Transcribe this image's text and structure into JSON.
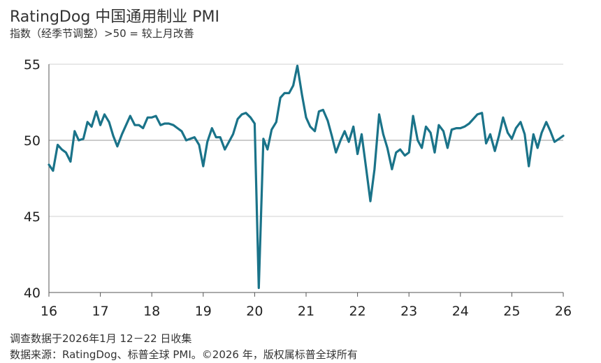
{
  "header": {
    "title": "RatingDog 中国通用制业 PMI",
    "subtitle": "指数（经季节调整）>50 = 较上月改善"
  },
  "footer": {
    "line1": "调查数据于2026年1月 12－22 日收集",
    "line2": "数据来源：RatingDog、标普全球 PMI。©2026 年，版权属标普全球所有"
  },
  "colors": {
    "line": "#1a7389",
    "grid": "#d0d0d0",
    "axis": "#555555"
  },
  "chart_data": {
    "type": "line",
    "title": "RatingDog 中国通用制业 PMI",
    "xlabel": "",
    "ylabel": "",
    "xlim": [
      2016.0,
      2026.0
    ],
    "ylim": [
      40,
      55
    ],
    "xticks": [
      "16",
      "17",
      "18",
      "19",
      "20",
      "21",
      "22",
      "23",
      "24",
      "25",
      "26"
    ],
    "yticks": [
      40,
      45,
      50,
      55
    ],
    "grid": "horizontal",
    "series": [
      {
        "values": [
          [
            2016.0,
            48.4
          ],
          [
            2016.08,
            48.0
          ],
          [
            2016.17,
            49.7
          ],
          [
            2016.25,
            49.4
          ],
          [
            2016.33,
            49.2
          ],
          [
            2016.42,
            48.6
          ],
          [
            2016.5,
            50.6
          ],
          [
            2016.58,
            50.0
          ],
          [
            2016.67,
            50.1
          ],
          [
            2016.75,
            51.2
          ],
          [
            2016.83,
            50.9
          ],
          [
            2016.92,
            51.9
          ],
          [
            2017.0,
            51.0
          ],
          [
            2017.08,
            51.7
          ],
          [
            2017.17,
            51.2
          ],
          [
            2017.25,
            50.3
          ],
          [
            2017.33,
            49.6
          ],
          [
            2017.42,
            50.4
          ],
          [
            2017.5,
            51.0
          ],
          [
            2017.58,
            51.6
          ],
          [
            2017.67,
            51.0
          ],
          [
            2017.75,
            51.0
          ],
          [
            2017.83,
            50.8
          ],
          [
            2017.92,
            51.5
          ],
          [
            2018.0,
            51.5
          ],
          [
            2018.08,
            51.6
          ],
          [
            2018.17,
            51.0
          ],
          [
            2018.25,
            51.1
          ],
          [
            2018.33,
            51.1
          ],
          [
            2018.42,
            51.0
          ],
          [
            2018.5,
            50.8
          ],
          [
            2018.58,
            50.6
          ],
          [
            2018.67,
            50.0
          ],
          [
            2018.75,
            50.1
          ],
          [
            2018.83,
            50.2
          ],
          [
            2018.92,
            49.7
          ],
          [
            2019.0,
            48.3
          ],
          [
            2019.08,
            49.9
          ],
          [
            2019.17,
            50.8
          ],
          [
            2019.25,
            50.2
          ],
          [
            2019.33,
            50.2
          ],
          [
            2019.42,
            49.4
          ],
          [
            2019.5,
            49.9
          ],
          [
            2019.58,
            50.4
          ],
          [
            2019.67,
            51.4
          ],
          [
            2019.75,
            51.7
          ],
          [
            2019.83,
            51.8
          ],
          [
            2019.92,
            51.5
          ],
          [
            2020.0,
            51.1
          ],
          [
            2020.08,
            40.3
          ],
          [
            2020.17,
            50.1
          ],
          [
            2020.25,
            49.4
          ],
          [
            2020.33,
            50.7
          ],
          [
            2020.42,
            51.2
          ],
          [
            2020.5,
            52.8
          ],
          [
            2020.58,
            53.1
          ],
          [
            2020.67,
            53.1
          ],
          [
            2020.75,
            53.6
          ],
          [
            2020.83,
            54.9
          ],
          [
            2020.92,
            53.0
          ],
          [
            2021.0,
            51.5
          ],
          [
            2021.08,
            50.9
          ],
          [
            2021.17,
            50.6
          ],
          [
            2021.25,
            51.9
          ],
          [
            2021.33,
            52.0
          ],
          [
            2021.42,
            51.3
          ],
          [
            2021.5,
            50.3
          ],
          [
            2021.58,
            49.2
          ],
          [
            2021.67,
            50.0
          ],
          [
            2021.75,
            50.6
          ],
          [
            2021.83,
            49.9
          ],
          [
            2021.92,
            50.9
          ],
          [
            2022.0,
            49.1
          ],
          [
            2022.08,
            50.4
          ],
          [
            2022.17,
            48.1
          ],
          [
            2022.25,
            46.0
          ],
          [
            2022.33,
            48.1
          ],
          [
            2022.42,
            51.7
          ],
          [
            2022.5,
            50.4
          ],
          [
            2022.58,
            49.5
          ],
          [
            2022.67,
            48.1
          ],
          [
            2022.75,
            49.2
          ],
          [
            2022.83,
            49.4
          ],
          [
            2022.92,
            49.0
          ],
          [
            2023.0,
            49.2
          ],
          [
            2023.08,
            51.6
          ],
          [
            2023.17,
            50.0
          ],
          [
            2023.25,
            49.5
          ],
          [
            2023.33,
            50.9
          ],
          [
            2023.42,
            50.5
          ],
          [
            2023.5,
            49.2
          ],
          [
            2023.58,
            51.0
          ],
          [
            2023.67,
            50.6
          ],
          [
            2023.75,
            49.5
          ],
          [
            2023.83,
            50.7
          ],
          [
            2023.92,
            50.8
          ],
          [
            2024.0,
            50.8
          ],
          [
            2024.08,
            50.9
          ],
          [
            2024.17,
            51.1
          ],
          [
            2024.25,
            51.4
          ],
          [
            2024.33,
            51.7
          ],
          [
            2024.42,
            51.8
          ],
          [
            2024.5,
            49.8
          ],
          [
            2024.58,
            50.4
          ],
          [
            2024.67,
            49.3
          ],
          [
            2024.75,
            50.3
          ],
          [
            2024.83,
            51.5
          ],
          [
            2024.92,
            50.5
          ],
          [
            2025.0,
            50.1
          ],
          [
            2025.08,
            50.8
          ],
          [
            2025.17,
            51.2
          ],
          [
            2025.25,
            50.4
          ],
          [
            2025.33,
            48.3
          ],
          [
            2025.42,
            50.4
          ],
          [
            2025.5,
            49.5
          ],
          [
            2025.58,
            50.5
          ],
          [
            2025.67,
            51.2
          ],
          [
            2025.75,
            50.6
          ],
          [
            2025.83,
            49.9
          ],
          [
            2025.92,
            50.1
          ],
          [
            2026.0,
            50.3
          ]
        ]
      }
    ]
  }
}
